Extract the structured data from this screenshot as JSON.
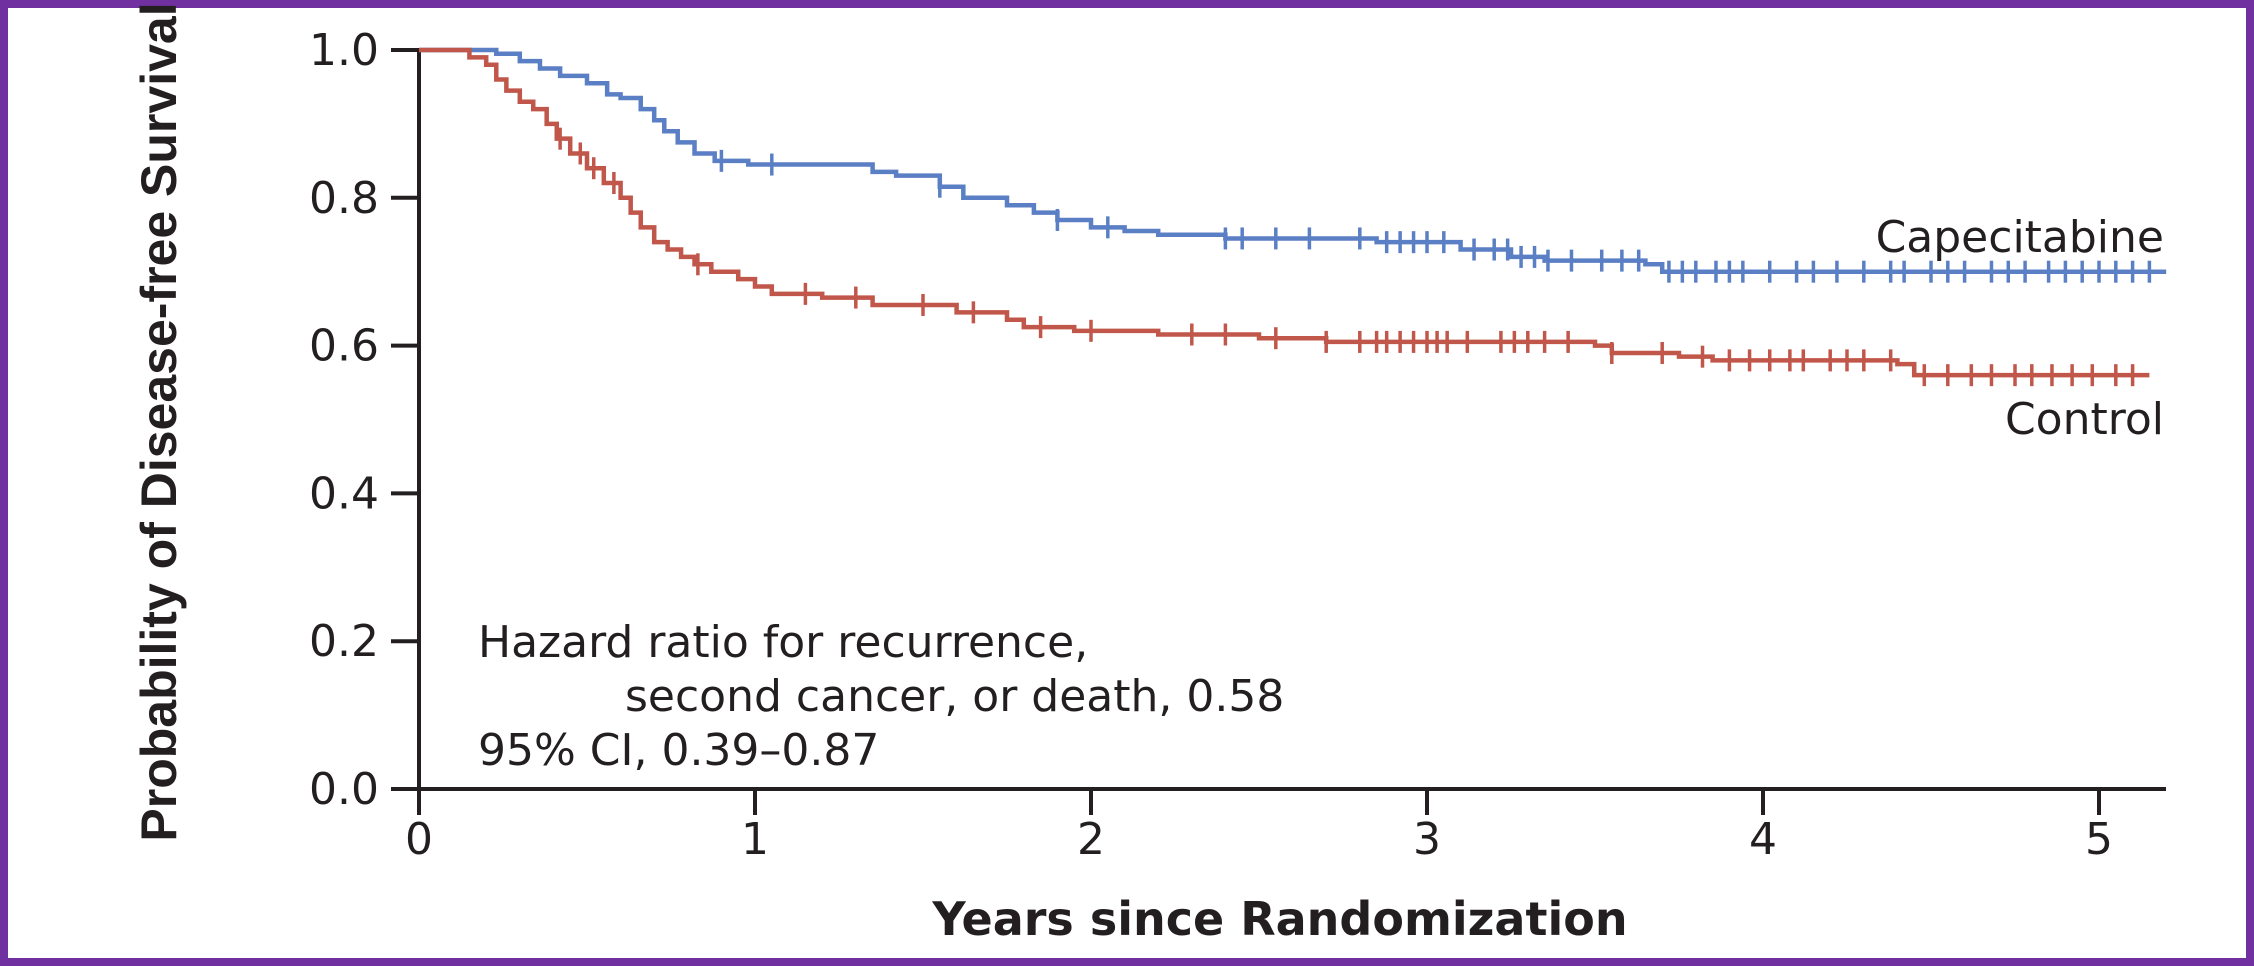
{
  "chart_data": {
    "type": "line",
    "title": "",
    "xlabel": "Years since Randomization",
    "ylabel": "Probability of Disease-free Survival",
    "xlim": [
      0,
      5.2
    ],
    "ylim": [
      0,
      1.0
    ],
    "x_ticks": [
      "0",
      "1",
      "2",
      "3",
      "4",
      "5"
    ],
    "y_ticks": [
      "0.0",
      "0.2",
      "0.4",
      "0.6",
      "0.8",
      "1.0"
    ],
    "grid": false,
    "legend": "inline labels at right end of curves",
    "annotation": {
      "line1": "Hazard ratio for recurrence,",
      "line2": "second cancer, or death, 0.58",
      "line3": "95% CI, 0.39–0.87"
    },
    "series": [
      {
        "name": "Capecitabine",
        "color": "#5b7fc4",
        "label_position": "above",
        "steps": [
          [
            0,
            1.0
          ],
          [
            0.23,
            0.995
          ],
          [
            0.3,
            0.985
          ],
          [
            0.36,
            0.975
          ],
          [
            0.42,
            0.965
          ],
          [
            0.5,
            0.955
          ],
          [
            0.56,
            0.94
          ],
          [
            0.6,
            0.935
          ],
          [
            0.66,
            0.92
          ],
          [
            0.7,
            0.905
          ],
          [
            0.73,
            0.89
          ],
          [
            0.77,
            0.875
          ],
          [
            0.82,
            0.86
          ],
          [
            0.88,
            0.85
          ],
          [
            0.98,
            0.845
          ],
          [
            1.35,
            0.835
          ],
          [
            1.42,
            0.83
          ],
          [
            1.55,
            0.815
          ],
          [
            1.62,
            0.8
          ],
          [
            1.75,
            0.79
          ],
          [
            1.83,
            0.78
          ],
          [
            1.9,
            0.77
          ],
          [
            2.0,
            0.76
          ],
          [
            2.1,
            0.755
          ],
          [
            2.2,
            0.75
          ],
          [
            2.4,
            0.745
          ],
          [
            2.6,
            0.745
          ],
          [
            2.85,
            0.74
          ],
          [
            3.1,
            0.73
          ],
          [
            3.25,
            0.72
          ],
          [
            3.35,
            0.715
          ],
          [
            3.65,
            0.71
          ],
          [
            3.7,
            0.7
          ],
          [
            5.2,
            0.7
          ]
        ],
        "censor_x": [
          0.9,
          1.05,
          1.55,
          1.9,
          2.05,
          2.4,
          2.45,
          2.55,
          2.65,
          2.8,
          2.88,
          2.92,
          2.96,
          3.0,
          3.05,
          3.14,
          3.2,
          3.24,
          3.28,
          3.32,
          3.36,
          3.43,
          3.52,
          3.58,
          3.63,
          3.72,
          3.76,
          3.8,
          3.86,
          3.9,
          3.94,
          4.02,
          4.1,
          4.15,
          4.22,
          4.3,
          4.38,
          4.42,
          4.5,
          4.55,
          4.6,
          4.68,
          4.73,
          4.78,
          4.85,
          4.9,
          4.95,
          5.0,
          5.05,
          5.1,
          5.15
        ]
      },
      {
        "name": "Control",
        "color": "#c0574a",
        "label_position": "below",
        "steps": [
          [
            0,
            1.0
          ],
          [
            0.15,
            0.99
          ],
          [
            0.2,
            0.98
          ],
          [
            0.23,
            0.96
          ],
          [
            0.26,
            0.945
          ],
          [
            0.3,
            0.93
          ],
          [
            0.34,
            0.92
          ],
          [
            0.38,
            0.9
          ],
          [
            0.41,
            0.88
          ],
          [
            0.45,
            0.86
          ],
          [
            0.5,
            0.84
          ],
          [
            0.55,
            0.82
          ],
          [
            0.6,
            0.8
          ],
          [
            0.63,
            0.78
          ],
          [
            0.66,
            0.76
          ],
          [
            0.7,
            0.74
          ],
          [
            0.74,
            0.73
          ],
          [
            0.78,
            0.72
          ],
          [
            0.82,
            0.71
          ],
          [
            0.87,
            0.7
          ],
          [
            0.95,
            0.69
          ],
          [
            1.0,
            0.68
          ],
          [
            1.05,
            0.67
          ],
          [
            1.2,
            0.665
          ],
          [
            1.35,
            0.655
          ],
          [
            1.6,
            0.645
          ],
          [
            1.75,
            0.635
          ],
          [
            1.8,
            0.625
          ],
          [
            1.95,
            0.62
          ],
          [
            2.2,
            0.615
          ],
          [
            2.5,
            0.61
          ],
          [
            2.7,
            0.605
          ],
          [
            3.5,
            0.6
          ],
          [
            3.55,
            0.59
          ],
          [
            3.75,
            0.585
          ],
          [
            3.85,
            0.58
          ],
          [
            4.4,
            0.575
          ],
          [
            4.45,
            0.56
          ],
          [
            5.15,
            0.56
          ]
        ],
        "censor_x": [
          0.42,
          0.48,
          0.52,
          0.58,
          0.83,
          1.15,
          1.3,
          1.5,
          1.65,
          1.85,
          2.0,
          2.3,
          2.4,
          2.55,
          2.7,
          2.8,
          2.85,
          2.88,
          2.92,
          2.96,
          3.0,
          3.03,
          3.06,
          3.12,
          3.22,
          3.26,
          3.3,
          3.35,
          3.42,
          3.55,
          3.7,
          3.82,
          3.9,
          3.96,
          4.02,
          4.08,
          4.12,
          4.2,
          4.25,
          4.3,
          4.38,
          4.48,
          4.55,
          4.62,
          4.68,
          4.75,
          4.8,
          4.86,
          4.92,
          4.98,
          5.05,
          5.1
        ]
      }
    ]
  }
}
